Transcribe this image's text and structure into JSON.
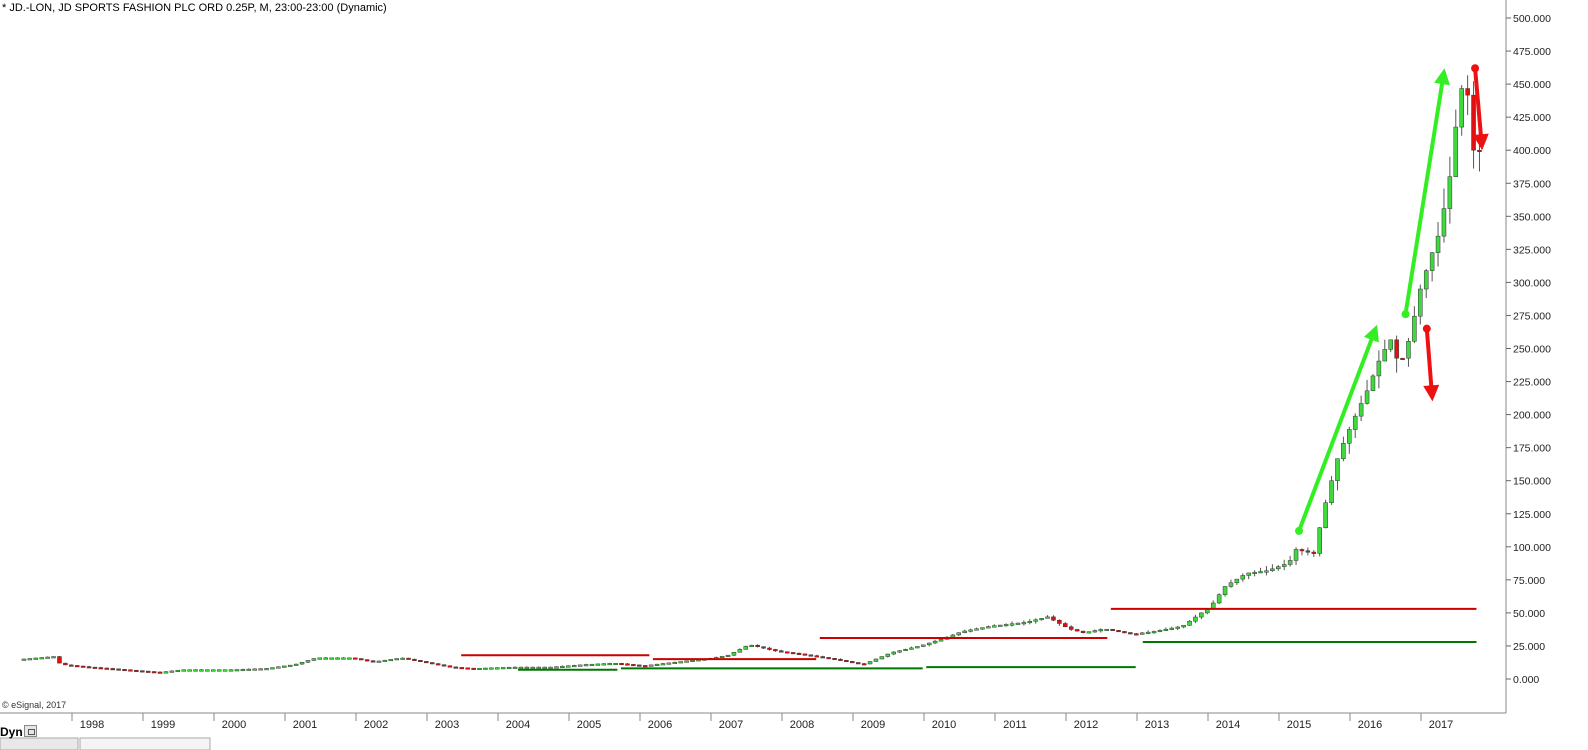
{
  "header": {
    "title": "* JD.-LON, JD SPORTS FASHION PLC ORD 0.25P, M, 23:00-23:00 (Dynamic)"
  },
  "footer": {
    "copyright": "© eSignal, 2017",
    "interval_label": "Dyn"
  },
  "colors": {
    "up_candle": "#3fd93f",
    "down_candle": "#e01010",
    "resistance": "#cc0000",
    "support": "#007700",
    "trend_arrow_up": "#33ee22",
    "trend_arrow_down": "#ee1111",
    "circle": "#a0522d"
  },
  "chart_data": {
    "type": "candlestick",
    "instrument": "JD.-LON",
    "interval": "M",
    "y_ticks": [
      "500.000",
      "475.000",
      "450.000",
      "425.000",
      "400.000",
      "375.000",
      "350.000",
      "325.000",
      "300.000",
      "275.000",
      "250.000",
      "225.000",
      "200.000",
      "175.000",
      "150.000",
      "125.000",
      "100.000",
      "75.000",
      "50.000",
      "25.000",
      "0.000"
    ],
    "x_ticks": [
      "1998",
      "1999",
      "2000",
      "2001",
      "2002",
      "2003",
      "2004",
      "2005",
      "2006",
      "2007",
      "2008",
      "2009",
      "2010",
      "2011",
      "2012",
      "2013",
      "2014",
      "2015",
      "2016",
      "2017"
    ],
    "ylim": [
      -10,
      505
    ],
    "xlim": [
      1997.0,
      2017.9
    ],
    "anchors": [
      [
        1997.05,
        15
      ],
      [
        1997.5,
        17
      ],
      [
        1997.6,
        11
      ],
      [
        1998.0,
        9
      ],
      [
        1998.5,
        7
      ],
      [
        1999.0,
        5
      ],
      [
        1999.3,
        7
      ],
      [
        2000.0,
        7
      ],
      [
        2000.5,
        8
      ],
      [
        2000.9,
        11
      ],
      [
        2001.2,
        16
      ],
      [
        2001.7,
        16
      ],
      [
        2002.0,
        13
      ],
      [
        2002.4,
        16
      ],
      [
        2002.8,
        12
      ],
      [
        2003.1,
        9
      ],
      [
        2003.4,
        8
      ],
      [
        2004.0,
        9
      ],
      [
        2004.5,
        9
      ],
      [
        2005.0,
        11
      ],
      [
        2005.4,
        12
      ],
      [
        2005.8,
        10
      ],
      [
        2006.3,
        13
      ],
      [
        2006.8,
        16
      ],
      [
        2007.0,
        18
      ],
      [
        2007.3,
        26
      ],
      [
        2007.45,
        24
      ],
      [
        2007.7,
        21
      ],
      [
        2008.0,
        19
      ],
      [
        2008.5,
        15
      ],
      [
        2008.9,
        11
      ],
      [
        2009.3,
        20
      ],
      [
        2009.7,
        25
      ],
      [
        2010.0,
        30
      ],
      [
        2010.3,
        36
      ],
      [
        2010.7,
        40
      ],
      [
        2011.2,
        43
      ],
      [
        2011.5,
        47
      ],
      [
        2011.8,
        38
      ],
      [
        2012.0,
        35
      ],
      [
        2012.3,
        38
      ],
      [
        2012.7,
        34
      ],
      [
        2013.0,
        36
      ],
      [
        2013.4,
        40
      ],
      [
        2013.8,
        55
      ],
      [
        2014.0,
        70
      ],
      [
        2014.3,
        80
      ],
      [
        2014.6,
        82
      ],
      [
        2014.9,
        88
      ],
      [
        2015.0,
        98
      ],
      [
        2015.25,
        95
      ],
      [
        2015.4,
        130
      ],
      [
        2015.6,
        170
      ],
      [
        2015.8,
        195
      ],
      [
        2016.0,
        218
      ],
      [
        2016.2,
        245
      ],
      [
        2016.35,
        258
      ],
      [
        2016.45,
        235
      ],
      [
        2016.6,
        258
      ],
      [
        2016.75,
        295
      ],
      [
        2016.9,
        320
      ],
      [
        2017.0,
        335
      ],
      [
        2017.1,
        360
      ],
      [
        2017.2,
        390
      ],
      [
        2017.3,
        445
      ],
      [
        2017.4,
        450
      ],
      [
        2017.5,
        400
      ]
    ],
    "resistance_lines": [
      {
        "x1": 2003.2,
        "x2": 2005.85,
        "y": 18
      },
      {
        "x1": 2005.9,
        "x2": 2008.2,
        "y": 15
      },
      {
        "x1": 2008.25,
        "x2": 2012.3,
        "y": 31
      },
      {
        "x1": 2012.35,
        "x2": 2017.5,
        "y": 53
      }
    ],
    "support_lines": [
      {
        "x1": 2004.0,
        "x2": 2005.4,
        "y": 7
      },
      {
        "x1": 2005.45,
        "x2": 2009.7,
        "y": 8
      },
      {
        "x1": 2009.75,
        "x2": 2012.7,
        "y": 9
      },
      {
        "x1": 2012.8,
        "x2": 2017.5,
        "y": 28
      }
    ],
    "trend_arrows_up": [
      {
        "x1": 2015.0,
        "y1": 112,
        "x2": 2016.1,
        "y2": 268
      },
      {
        "x1": 2016.5,
        "y1": 276,
        "x2": 2017.05,
        "y2": 462
      }
    ],
    "trend_arrows_down": [
      {
        "x1": 2016.8,
        "y1": 265,
        "x2": 2016.88,
        "y2": 210
      },
      {
        "x1": 2017.48,
        "y1": 462,
        "x2": 2017.58,
        "y2": 400
      }
    ],
    "highlight_circle_value": 400
  }
}
